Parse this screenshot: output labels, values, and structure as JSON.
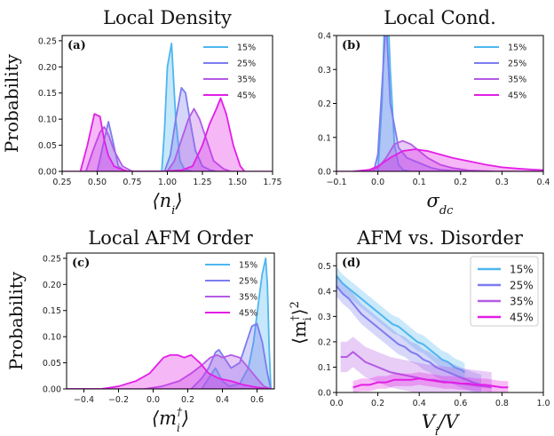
{
  "colors": {
    "s15": "#4fb6ef",
    "s25": "#7c7cf0",
    "s35": "#b35be6",
    "s45": "#e31ee6"
  },
  "chart_data": [
    {
      "type": "area",
      "panel_label": "(a)",
      "title": "Local Density",
      "xlabel": "⟨n_i⟩",
      "ylabel": "Probability",
      "xlim": [
        0.25,
        1.75
      ],
      "ylim": [
        0,
        0.26
      ],
      "xticks": [
        "0.25",
        "0.50",
        "0.75",
        "1.00",
        "1.25",
        "1.50",
        "1.75"
      ],
      "xtick_vals": [
        0.25,
        0.5,
        0.75,
        1.0,
        1.25,
        1.5,
        1.75
      ],
      "yticks": [
        "0.00",
        "0.05",
        "0.10",
        "0.15",
        "0.20",
        "0.25"
      ],
      "ytick_vals": [
        0,
        0.05,
        0.1,
        0.15,
        0.2,
        0.25
      ],
      "legend": "top-right",
      "series": [
        {
          "name": "15%",
          "color": "s15",
          "x": [
            0.96,
            0.98,
            1.0,
            1.03,
            1.06,
            1.09,
            1.12,
            1.15,
            1.18
          ],
          "y": [
            0.0,
            0.08,
            0.2,
            0.245,
            0.1,
            0.02,
            0.005,
            0.002,
            0.0
          ]
        },
        {
          "name": "25%",
          "color": "s25",
          "x": [
            0.5,
            0.55,
            0.58,
            0.61,
            0.65,
            0.7,
            0.98,
            1.02,
            1.06,
            1.1,
            1.13,
            1.16,
            1.2,
            1.25,
            1.3,
            1.35
          ],
          "y": [
            0.0,
            0.06,
            0.095,
            0.06,
            0.01,
            0.0,
            0.0,
            0.03,
            0.1,
            0.16,
            0.15,
            0.1,
            0.04,
            0.01,
            0.003,
            0.0
          ]
        },
        {
          "name": "35%",
          "color": "s35",
          "x": [
            0.42,
            0.47,
            0.52,
            0.55,
            0.58,
            0.62,
            0.68,
            0.75,
            1.0,
            1.05,
            1.1,
            1.15,
            1.19,
            1.23,
            1.28,
            1.33,
            1.4,
            1.45
          ],
          "y": [
            0.0,
            0.04,
            0.075,
            0.085,
            0.07,
            0.04,
            0.01,
            0.0,
            0.0,
            0.02,
            0.06,
            0.1,
            0.12,
            0.1,
            0.06,
            0.02,
            0.005,
            0.0
          ]
        },
        {
          "name": "45%",
          "color": "s45",
          "x": [
            0.38,
            0.43,
            0.48,
            0.52,
            0.55,
            0.58,
            0.62,
            0.66,
            0.72,
            0.8,
            0.95,
            1.1,
            1.18,
            1.25,
            1.3,
            1.35,
            1.38,
            1.42,
            1.47,
            1.52,
            1.55
          ],
          "y": [
            0.0,
            0.05,
            0.11,
            0.105,
            0.06,
            0.03,
            0.01,
            0.005,
            0.0,
            0.0,
            0.0,
            0.002,
            0.01,
            0.05,
            0.09,
            0.12,
            0.14,
            0.11,
            0.05,
            0.01,
            0.0
          ]
        }
      ]
    },
    {
      "type": "area",
      "panel_label": "(b)",
      "title": "Local Cond.",
      "xlabel": "σ_dc",
      "ylabel": "",
      "xlim": [
        -0.1,
        0.4
      ],
      "ylim": [
        0,
        0.4
      ],
      "xticks": [
        "−0.1",
        "0.0",
        "0.1",
        "0.2",
        "0.3",
        "0.4"
      ],
      "xtick_vals": [
        -0.1,
        0.0,
        0.1,
        0.2,
        0.3,
        0.4
      ],
      "yticks": [
        "0.0",
        "0.1",
        "0.2",
        "0.3",
        "0.4"
      ],
      "ytick_vals": [
        0,
        0.1,
        0.2,
        0.3,
        0.4
      ],
      "legend": "top-right",
      "series": [
        {
          "name": "15%",
          "color": "s15",
          "x": [
            0.0,
            0.01,
            0.02,
            0.03,
            0.04,
            0.05,
            0.06,
            0.08
          ],
          "y": [
            0.0,
            0.2,
            0.6,
            0.3,
            0.08,
            0.02,
            0.005,
            0.0
          ]
        },
        {
          "name": "25%",
          "color": "s25",
          "x": [
            -0.01,
            0.0,
            0.01,
            0.02,
            0.03,
            0.05,
            0.07,
            0.09,
            0.11,
            0.13,
            0.15,
            0.18,
            0.22
          ],
          "y": [
            0.0,
            0.05,
            0.25,
            0.45,
            0.2,
            0.07,
            0.04,
            0.03,
            0.02,
            0.01,
            0.005,
            0.002,
            0.0
          ]
        },
        {
          "name": "35%",
          "color": "s35",
          "x": [
            -0.03,
            0.0,
            0.02,
            0.04,
            0.06,
            0.08,
            0.1,
            0.12,
            0.15,
            0.18,
            0.22,
            0.28
          ],
          "y": [
            0.0,
            0.01,
            0.04,
            0.08,
            0.09,
            0.08,
            0.06,
            0.04,
            0.02,
            0.01,
            0.003,
            0.0
          ]
        },
        {
          "name": "45%",
          "color": "s45",
          "x": [
            -0.06,
            -0.02,
            0.0,
            0.03,
            0.06,
            0.09,
            0.12,
            0.15,
            0.18,
            0.22,
            0.26,
            0.3,
            0.34,
            0.38,
            0.4
          ],
          "y": [
            0.0,
            0.005,
            0.015,
            0.04,
            0.06,
            0.065,
            0.06,
            0.05,
            0.04,
            0.03,
            0.02,
            0.012,
            0.008,
            0.005,
            0.004
          ]
        }
      ]
    },
    {
      "type": "area",
      "panel_label": "(c)",
      "title": "Local AFM Order",
      "xlabel": "⟨m_i^†⟩",
      "ylabel": "Probability",
      "xlim": [
        -0.5,
        0.7
      ],
      "ylim": [
        0,
        0.26
      ],
      "xticks": [
        "−0.4",
        "−0.2",
        "0.0",
        "0.2",
        "0.4",
        "0.6"
      ],
      "xtick_vals": [
        -0.4,
        -0.2,
        0.0,
        0.2,
        0.4,
        0.6
      ],
      "yticks": [
        "0.00",
        "0.05",
        "0.10",
        "0.15",
        "0.20",
        "0.25"
      ],
      "ytick_vals": [
        0,
        0.05,
        0.1,
        0.15,
        0.2,
        0.25
      ],
      "legend": "top-right",
      "series": [
        {
          "name": "15%",
          "color": "s15",
          "x": [
            0.28,
            0.32,
            0.36,
            0.4,
            0.44,
            0.5,
            0.55,
            0.58,
            0.61,
            0.63,
            0.65,
            0.66,
            0.67,
            0.68
          ],
          "y": [
            0.0,
            0.02,
            0.04,
            0.015,
            0.005,
            0.01,
            0.04,
            0.09,
            0.17,
            0.22,
            0.25,
            0.2,
            0.08,
            0.0
          ]
        },
        {
          "name": "25%",
          "color": "s25",
          "x": [
            0.22,
            0.28,
            0.32,
            0.36,
            0.38,
            0.41,
            0.45,
            0.5,
            0.54,
            0.57,
            0.6,
            0.63,
            0.66,
            0.68
          ],
          "y": [
            0.0,
            0.02,
            0.04,
            0.07,
            0.075,
            0.06,
            0.04,
            0.05,
            0.09,
            0.12,
            0.125,
            0.09,
            0.03,
            0.0
          ]
        },
        {
          "name": "35%",
          "color": "s35",
          "x": [
            -0.05,
            0.05,
            0.15,
            0.22,
            0.28,
            0.33,
            0.37,
            0.4,
            0.45,
            0.5,
            0.55,
            0.6,
            0.64,
            0.68
          ],
          "y": [
            0.0,
            0.005,
            0.015,
            0.03,
            0.045,
            0.06,
            0.065,
            0.06,
            0.065,
            0.06,
            0.04,
            0.02,
            0.005,
            0.0
          ]
        },
        {
          "name": "45%",
          "color": "s45",
          "x": [
            -0.5,
            -0.3,
            -0.2,
            -0.1,
            -0.02,
            0.02,
            0.06,
            0.1,
            0.14,
            0.18,
            0.22,
            0.27,
            0.32,
            0.38,
            0.45,
            0.52,
            0.6,
            0.68
          ],
          "y": [
            0.0,
            0.0,
            0.005,
            0.015,
            0.03,
            0.045,
            0.06,
            0.065,
            0.065,
            0.06,
            0.065,
            0.05,
            0.03,
            0.02,
            0.015,
            0.008,
            0.003,
            0.0
          ]
        }
      ]
    },
    {
      "type": "line",
      "panel_label": "(d)",
      "title": "AFM vs. Disorder",
      "xlabel": "V_i/V",
      "ylabel": "⟨m_i^†⟩²",
      "xlim": [
        0.0,
        1.0
      ],
      "ylim": [
        0.0,
        0.55
      ],
      "xticks": [
        "0.0",
        "0.2",
        "0.4",
        "0.6",
        "0.8",
        "1.0"
      ],
      "xtick_vals": [
        0.0,
        0.2,
        0.4,
        0.6,
        0.8,
        1.0
      ],
      "yticks": [
        "0.0",
        "0.1",
        "0.2",
        "0.3",
        "0.4",
        "0.5"
      ],
      "ytick_vals": [
        0,
        0.1,
        0.2,
        0.3,
        0.4,
        0.5
      ],
      "legend": "top-right",
      "series": [
        {
          "name": "15%",
          "color": "s15",
          "x": [
            0.0,
            0.03,
            0.06,
            0.09,
            0.12,
            0.15,
            0.18,
            0.21,
            0.24,
            0.27,
            0.3,
            0.33,
            0.36,
            0.39,
            0.42,
            0.45,
            0.48,
            0.51,
            0.54,
            0.57,
            0.6,
            0.62
          ],
          "y": [
            0.46,
            0.43,
            0.41,
            0.39,
            0.37,
            0.35,
            0.33,
            0.31,
            0.29,
            0.27,
            0.26,
            0.24,
            0.22,
            0.2,
            0.19,
            0.17,
            0.15,
            0.13,
            0.12,
            0.1,
            0.09,
            0.08
          ],
          "band": 0.035
        },
        {
          "name": "25%",
          "color": "s25",
          "x": [
            0.0,
            0.03,
            0.06,
            0.09,
            0.12,
            0.15,
            0.18,
            0.21,
            0.24,
            0.27,
            0.3,
            0.33,
            0.36,
            0.39,
            0.42,
            0.45,
            0.48,
            0.51,
            0.54,
            0.57,
            0.6,
            0.63,
            0.66,
            0.7
          ],
          "y": [
            0.42,
            0.39,
            0.37,
            0.34,
            0.31,
            0.29,
            0.27,
            0.25,
            0.23,
            0.21,
            0.19,
            0.18,
            0.16,
            0.15,
            0.13,
            0.12,
            0.1,
            0.09,
            0.08,
            0.07,
            0.06,
            0.05,
            0.04,
            0.03
          ],
          "band": 0.04
        },
        {
          "name": "35%",
          "color": "s35",
          "x": [
            0.02,
            0.05,
            0.08,
            0.11,
            0.14,
            0.17,
            0.2,
            0.23,
            0.26,
            0.29,
            0.32,
            0.35,
            0.38,
            0.41,
            0.44,
            0.47,
            0.5,
            0.55,
            0.6,
            0.65,
            0.7,
            0.75
          ],
          "y": [
            0.14,
            0.14,
            0.16,
            0.14,
            0.12,
            0.11,
            0.1,
            0.09,
            0.08,
            0.075,
            0.07,
            0.065,
            0.06,
            0.055,
            0.05,
            0.05,
            0.045,
            0.04,
            0.035,
            0.03,
            0.025,
            0.02
          ],
          "band": 0.06
        },
        {
          "name": "45%",
          "color": "s45",
          "x": [
            0.08,
            0.12,
            0.16,
            0.2,
            0.24,
            0.28,
            0.32,
            0.36,
            0.4,
            0.44,
            0.48,
            0.52,
            0.56,
            0.6,
            0.64,
            0.68,
            0.72,
            0.76,
            0.8,
            0.83
          ],
          "y": [
            0.02,
            0.03,
            0.03,
            0.04,
            0.04,
            0.05,
            0.05,
            0.05,
            0.055,
            0.05,
            0.045,
            0.04,
            0.04,
            0.035,
            0.035,
            0.03,
            0.03,
            0.025,
            0.02,
            0.02
          ],
          "band": 0.025
        }
      ]
    }
  ]
}
